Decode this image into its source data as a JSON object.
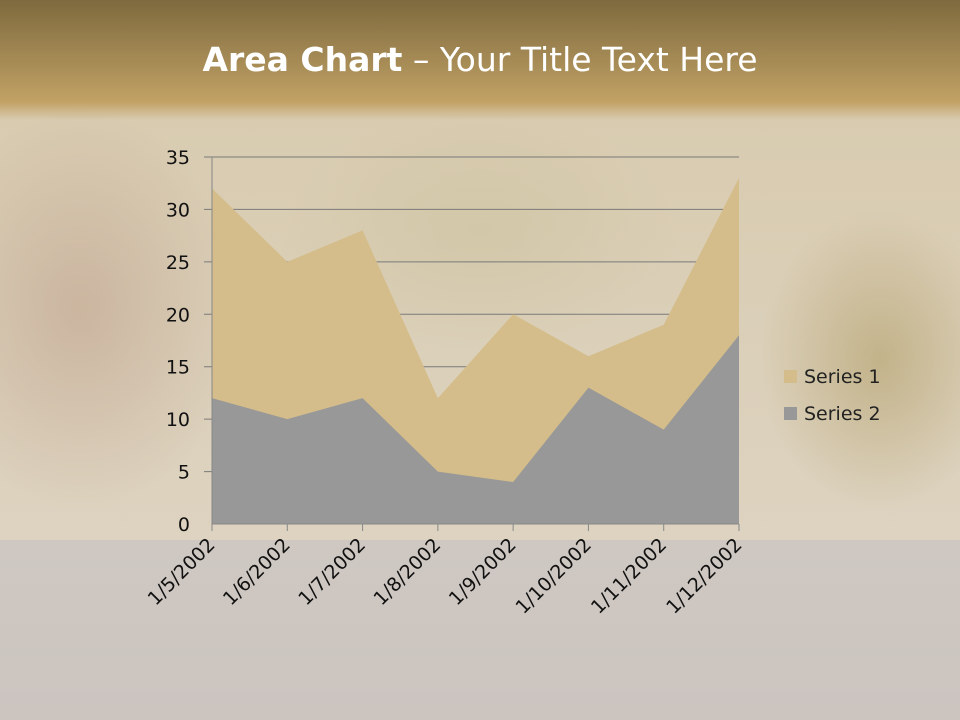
{
  "title": {
    "bold": "Area Chart",
    "rest": " – Your Title Text Here"
  },
  "chart_data": {
    "type": "area",
    "title": "",
    "xlabel": "",
    "ylabel": "",
    "categories": [
      "1/5/2002",
      "1/6/2002",
      "1/7/2002",
      "1/8/2002",
      "1/9/2002",
      "1/10/2002",
      "1/11/2002",
      "1/12/2002"
    ],
    "series": [
      {
        "name": "Series 1",
        "values": [
          32,
          25,
          28,
          12,
          20,
          16,
          19,
          33
        ],
        "color": "#d4bd8a"
      },
      {
        "name": "Series 2",
        "values": [
          12,
          10,
          12,
          5,
          4,
          13,
          9,
          18
        ],
        "color": "#989898"
      }
    ],
    "yticks": [
      "0",
      "5",
      "10",
      "15",
      "20",
      "25",
      "30",
      "35"
    ],
    "ylim": [
      0,
      35
    ],
    "grid": true,
    "stacked": false,
    "legend": "right"
  }
}
